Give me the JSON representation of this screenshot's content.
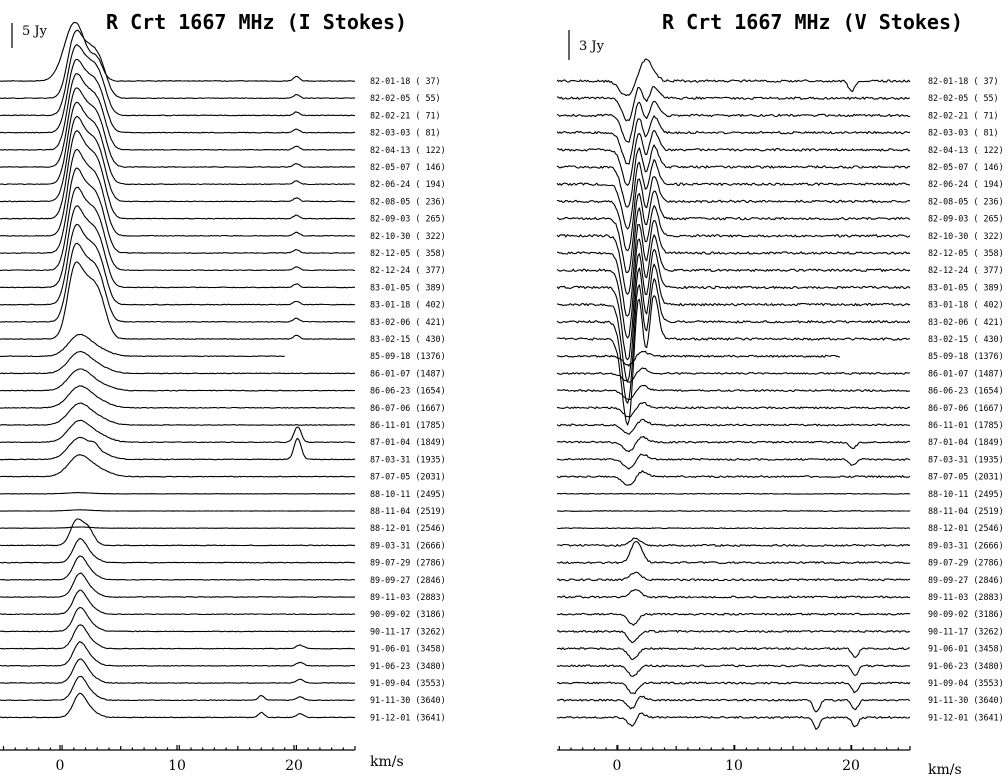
{
  "chart_data": [
    {
      "type": "line",
      "title": "R Crt 1667 MHz (I Stokes)",
      "scale_bar": "5 Jy",
      "xlabel": "km/s",
      "xlim": [
        -5,
        25
      ],
      "x_ticks": [
        0,
        10,
        20
      ],
      "epochs": [
        "82-01-18 ( 37)",
        "82-02-05 ( 55)",
        "82-02-21 ( 71)",
        "82-03-03 ( 81)",
        "82-04-13 ( 122)",
        "82-05-07 ( 146)",
        "82-06-24 ( 194)",
        "82-08-05 ( 236)",
        "82-09-03 ( 265)",
        "82-10-30 ( 322)",
        "82-12-05 ( 358)",
        "82-12-24 ( 377)",
        "83-01-05 ( 389)",
        "83-01-18 ( 402)",
        "83-02-06 ( 421)",
        "83-02-15 ( 430)",
        "85-09-18 (1376)",
        "86-01-07 (1487)",
        "86-06-23 (1654)",
        "86-07-06 (1667)",
        "86-11-01 (1785)",
        "87-01-04 (1849)",
        "87-03-31 (1935)",
        "87-07-05 (2031)",
        "88-10-11 (2495)",
        "88-11-04 (2519)",
        "88-12-01 (2546)",
        "89-03-31 (2666)",
        "89-07-29 (2786)",
        "89-09-27 (2846)",
        "89-11-03 (2883)",
        "90-09-02 (3186)",
        "90-11-17 (3262)",
        "91-06-01 (3458)",
        "91-06-23 (3480)",
        "91-09-04 (3553)",
        "91-11-30 (3640)",
        "91-12-01 (3641)"
      ]
    },
    {
      "type": "line",
      "title": "R Crt 1667 MHz (V Stokes)",
      "scale_bar": "3 Jy",
      "xlabel": "km/s",
      "xlim": [
        -5,
        25
      ],
      "x_ticks": [
        0,
        10,
        20
      ],
      "epochs": [
        "82-01-18 ( 37)",
        "82-02-05 ( 55)",
        "82-02-21 ( 71)",
        "82-03-03 ( 81)",
        "82-04-13 ( 122)",
        "82-05-07 ( 146)",
        "82-06-24 ( 194)",
        "82-08-05 ( 236)",
        "82-09-03 ( 265)",
        "82-10-30 ( 322)",
        "82-12-05 ( 358)",
        "82-12-24 ( 377)",
        "83-01-05 ( 389)",
        "83-01-18 ( 402)",
        "83-02-06 ( 421)",
        "83-02-15 ( 430)",
        "85-09-18 (1376)",
        "86-01-07 (1487)",
        "86-06-23 (1654)",
        "86-07-06 (1667)",
        "86-11-01 (1785)",
        "87-01-04 (1849)",
        "87-03-31 (1935)",
        "87-07-05 (2031)",
        "88-10-11 (2495)",
        "88-11-04 (2519)",
        "88-12-01 (2546)",
        "89-03-31 (2666)",
        "89-07-29 (2786)",
        "89-09-27 (2846)",
        "89-11-03 (2883)",
        "90-09-02 (3186)",
        "90-11-17 (3262)",
        "91-06-01 (3458)",
        "91-06-23 (3480)",
        "91-09-04 (3553)",
        "91-11-30 (3640)",
        "91-12-01 (3641)"
      ]
    }
  ]
}
